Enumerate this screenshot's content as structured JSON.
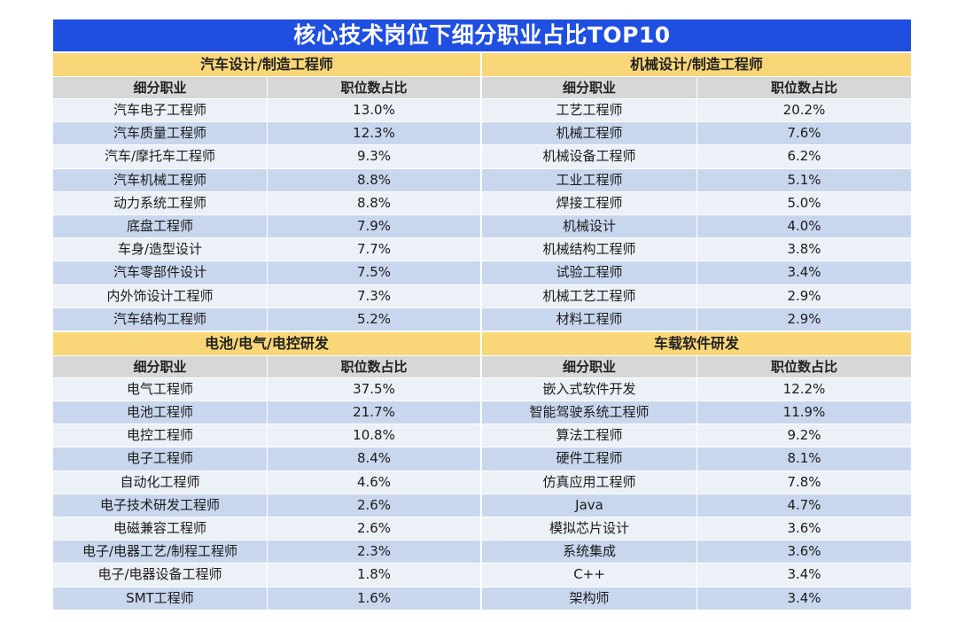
{
  "title": "核心技术岗位下细分职业占比TOP10",
  "column_headers": {
    "job": "细分职业",
    "share": "职位数占比"
  },
  "sections": [
    {
      "name": "汽车设计/制造工程师",
      "rows": [
        {
          "job": "汽车电子工程师",
          "share": "13.0%"
        },
        {
          "job": "汽车质量工程师",
          "share": "12.3%"
        },
        {
          "job": "汽车/摩托车工程师",
          "share": "9.3%"
        },
        {
          "job": "汽车机械工程师",
          "share": "8.8%"
        },
        {
          "job": "动力系统工程师",
          "share": "8.8%"
        },
        {
          "job": "底盘工程师",
          "share": "7.9%"
        },
        {
          "job": "车身/造型设计",
          "share": "7.7%"
        },
        {
          "job": "汽车零部件设计",
          "share": "7.5%"
        },
        {
          "job": "内外饰设计工程师",
          "share": "7.3%"
        },
        {
          "job": "汽车结构工程师",
          "share": "5.2%"
        }
      ]
    },
    {
      "name": "机械设计/制造工程师",
      "rows": [
        {
          "job": "工艺工程师",
          "share": "20.2%"
        },
        {
          "job": "机械工程师",
          "share": "7.6%"
        },
        {
          "job": "机械设备工程师",
          "share": "6.2%"
        },
        {
          "job": "工业工程师",
          "share": "5.1%"
        },
        {
          "job": "焊接工程师",
          "share": "5.0%"
        },
        {
          "job": "机械设计",
          "share": "4.0%"
        },
        {
          "job": "机械结构工程师",
          "share": "3.8%"
        },
        {
          "job": "试验工程师",
          "share": "3.4%"
        },
        {
          "job": "机械工艺工程师",
          "share": "2.9%"
        },
        {
          "job": "材料工程师",
          "share": "2.9%"
        }
      ]
    },
    {
      "name": "电池/电气/电控研发",
      "rows": [
        {
          "job": "电气工程师",
          "share": "37.5%"
        },
        {
          "job": "电池工程师",
          "share": "21.7%"
        },
        {
          "job": "电控工程师",
          "share": "10.8%"
        },
        {
          "job": "电子工程师",
          "share": "8.4%"
        },
        {
          "job": "自动化工程师",
          "share": "4.6%"
        },
        {
          "job": "电子技术研发工程师",
          "share": "2.6%"
        },
        {
          "job": "电磁兼容工程师",
          "share": "2.6%"
        },
        {
          "job": "电子/电器工艺/制程工程师",
          "share": "2.3%"
        },
        {
          "job": "电子/电器设备工程师",
          "share": "1.8%"
        },
        {
          "job": "SMT工程师",
          "share": "1.6%"
        }
      ]
    },
    {
      "name": "车载软件研发",
      "rows": [
        {
          "job": "嵌入式软件开发",
          "share": "12.2%"
        },
        {
          "job": "智能驾驶系统工程师",
          "share": "11.9%"
        },
        {
          "job": "算法工程师",
          "share": "9.2%"
        },
        {
          "job": "硬件工程师",
          "share": "8.1%"
        },
        {
          "job": "仿真应用工程师",
          "share": "7.8%"
        },
        {
          "job": "Java",
          "share": "4.7%"
        },
        {
          "job": "模拟芯片设计",
          "share": "3.6%"
        },
        {
          "job": "系统集成",
          "share": "3.6%"
        },
        {
          "job": "C++",
          "share": "3.4%"
        },
        {
          "job": "架构师",
          "share": "3.4%"
        }
      ]
    }
  ]
}
